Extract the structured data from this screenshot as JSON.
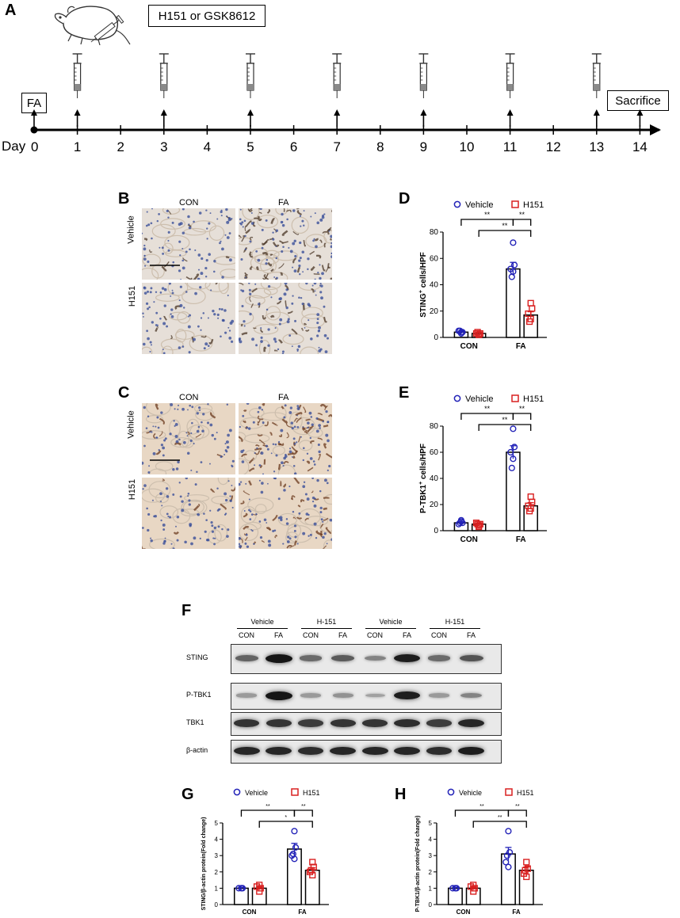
{
  "panels": {
    "A": "A",
    "B": "B",
    "C": "C",
    "D": "D",
    "E": "E",
    "F": "F",
    "G": "G",
    "H": "H"
  },
  "timeline": {
    "treatment_label": "H151 or GSK8612",
    "day_label": "Day",
    "start_label": "FA",
    "end_label": "Sacrifice",
    "days": [
      "0",
      "1",
      "2",
      "3",
      "4",
      "5",
      "6",
      "7",
      "8",
      "9",
      "10",
      "11",
      "12",
      "13",
      "14"
    ],
    "injection_days": [
      1,
      3,
      5,
      7,
      9,
      11,
      13
    ],
    "arrow_days": [
      0,
      1,
      3,
      5,
      7,
      9,
      11,
      13,
      14
    ]
  },
  "ihc": {
    "col_con": "CON",
    "col_fa": "FA",
    "row_vehicle": "Vehicle",
    "row_h151": "H151"
  },
  "blot": {
    "groups": [
      "Vehicle",
      "H-151",
      "Vehicle",
      "H-151"
    ],
    "lanes": [
      "CON",
      "FA",
      "CON",
      "FA",
      "CON",
      "FA",
      "CON",
      "FA"
    ],
    "rows": [
      "STING",
      "P-TBK1",
      "TBK1",
      "β-actin"
    ]
  },
  "chart_data": [
    {
      "id": "D",
      "type": "bar",
      "categories": [
        "CON",
        "FA"
      ],
      "series": [
        {
          "name": "Vehicle",
          "values": [
            4,
            52
          ],
          "color": "#2323b8",
          "points": [
            [
              3,
              4,
              5,
              4,
              5
            ],
            [
              72,
              55,
              52,
              50,
              46
            ]
          ],
          "error": [
            0.6,
            5
          ]
        },
        {
          "name": "H151",
          "values": [
            3,
            17
          ],
          "color": "#d92020",
          "points": [
            [
              2,
              3,
              3,
              2,
              4
            ],
            [
              26,
              22,
              18,
              14,
              12
            ]
          ],
          "error": [
            0.6,
            2.5
          ]
        }
      ],
      "ylabel_main": "STING",
      "ylabel_sup": "+",
      "ylabel_tail": " cells/HPF",
      "ylim": [
        0,
        80
      ],
      "yticks": [
        "0",
        "20",
        "40",
        "60",
        "80"
      ],
      "significance": [
        "**",
        "**",
        "**"
      ]
    },
    {
      "id": "E",
      "type": "bar",
      "categories": [
        "CON",
        "FA"
      ],
      "series": [
        {
          "name": "Vehicle",
          "values": [
            6,
            60
          ],
          "color": "#2323b8",
          "points": [
            [
              7,
              6,
              5,
              8,
              6
            ],
            [
              78,
              64,
              60,
              55,
              48
            ]
          ],
          "error": [
            0.8,
            5
          ]
        },
        {
          "name": "H151",
          "values": [
            5,
            19
          ],
          "color": "#d92020",
          "points": [
            [
              3,
              5,
              6,
              4,
              5
            ],
            [
              26,
              22,
              19,
              17,
              15
            ]
          ],
          "error": [
            0.8,
            2.5
          ]
        }
      ],
      "ylabel_main": "P-TBK1",
      "ylabel_sup": "+",
      "ylabel_tail": " cells/HPF",
      "ylim": [
        0,
        80
      ],
      "yticks": [
        "0",
        "20",
        "40",
        "60",
        "80"
      ],
      "significance": [
        "**",
        "**",
        "**"
      ]
    },
    {
      "id": "G",
      "type": "bar",
      "categories": [
        "CON",
        "FA"
      ],
      "series": [
        {
          "name": "Vehicle",
          "values": [
            1,
            3.4
          ],
          "color": "#2323b8",
          "points": [
            [
              1,
              1,
              1
            ],
            [
              4.5,
              3.5,
              3.0,
              2.8,
              3.1
            ]
          ],
          "error": [
            0.05,
            0.35
          ]
        },
        {
          "name": "H151",
          "values": [
            1,
            2.1
          ],
          "color": "#d92020",
          "points": [
            [
              0.8,
              1.0,
              1.1,
              1.2
            ],
            [
              2.6,
              2.3,
              2.0,
              1.8,
              2.1
            ]
          ],
          "error": [
            0.1,
            0.15
          ]
        }
      ],
      "ylabel_main": "STING/β-actin protein(Fold change)",
      "ylabel_sup": "",
      "ylabel_tail": "",
      "ylim": [
        0,
        5
      ],
      "yticks": [
        "0",
        "1",
        "2",
        "3",
        "4",
        "5"
      ],
      "significance": [
        "**",
        "**",
        "*"
      ]
    },
    {
      "id": "H",
      "type": "bar",
      "categories": [
        "CON",
        "FA"
      ],
      "series": [
        {
          "name": "Vehicle",
          "values": [
            1,
            3.1
          ],
          "color": "#2323b8",
          "points": [
            [
              1,
              1,
              1
            ],
            [
              4.5,
              3.2,
              2.6,
              2.3,
              3.0
            ]
          ],
          "error": [
            0.05,
            0.4
          ]
        },
        {
          "name": "H151",
          "values": [
            1,
            2.1
          ],
          "color": "#d92020",
          "points": [
            [
              0.8,
              1.0,
              1.1,
              1.2
            ],
            [
              2.6,
              2.2,
              1.9,
              1.7,
              2.1
            ]
          ],
          "error": [
            0.1,
            0.2
          ]
        }
      ],
      "ylabel_main": "P-TBK1/β-actin protein(Fold change)",
      "ylabel_sup": "",
      "ylabel_tail": "",
      "ylim": [
        0,
        5
      ],
      "yticks": [
        "0",
        "1",
        "2",
        "3",
        "4",
        "5"
      ],
      "significance": [
        "**",
        "**",
        "**"
      ]
    }
  ]
}
